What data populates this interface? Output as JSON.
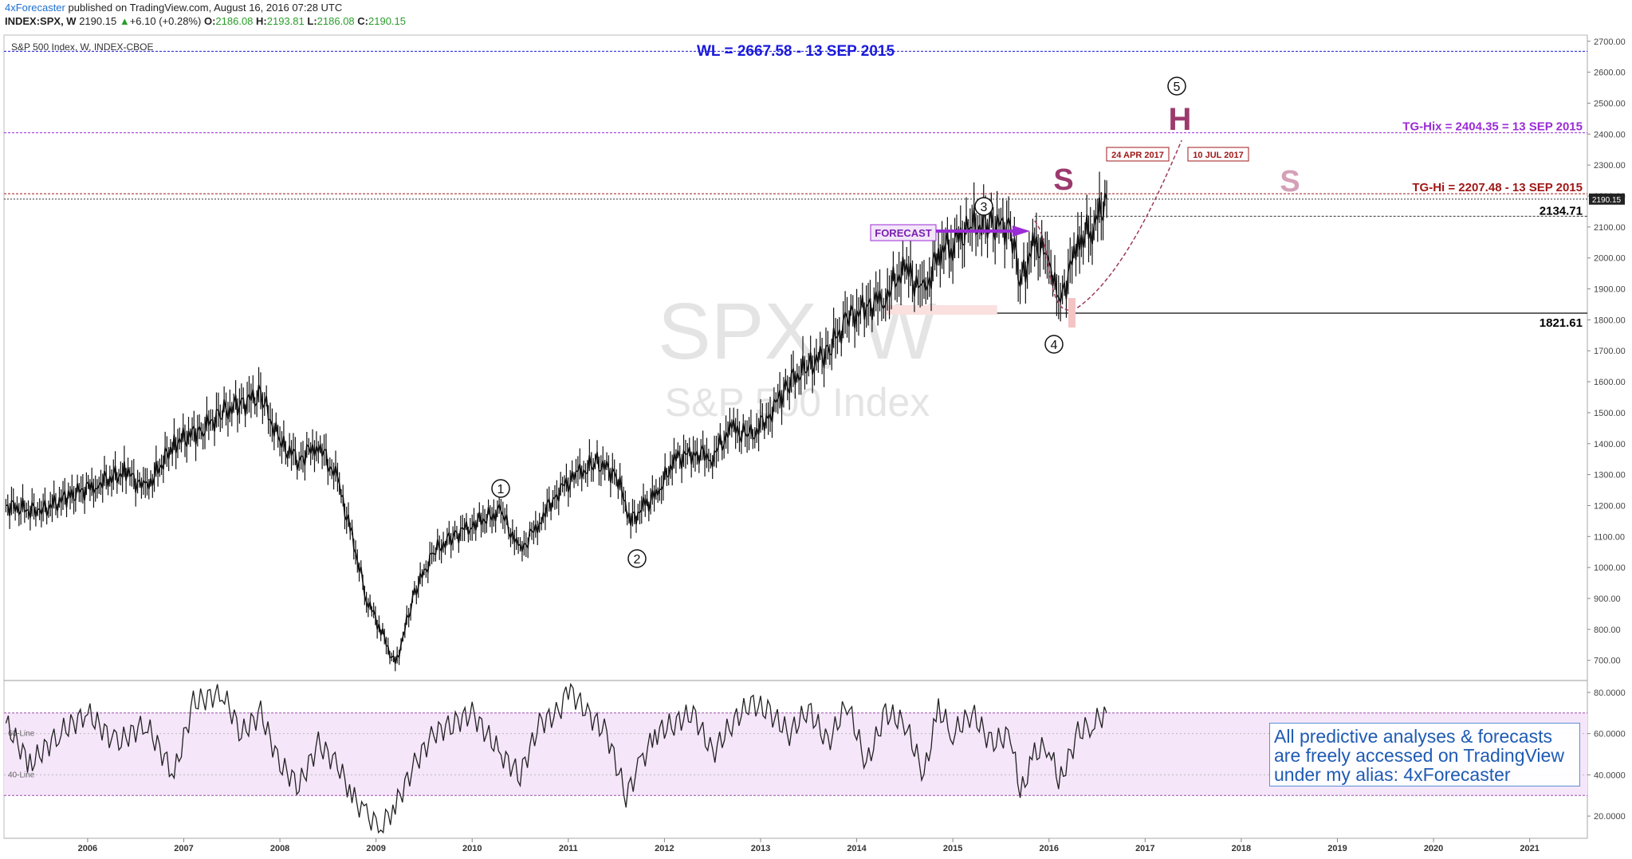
{
  "header": {
    "author": "4xForecaster",
    "published": "published on TradingView.com, August 16, 2016 07:28 UTC",
    "symbol": "INDEX:SPX, W",
    "price": "2190.15",
    "change": "+6.10 (+0.28%)",
    "open_label": "O:",
    "open": "2186.08",
    "high_label": "H:",
    "high": "2193.81",
    "low_label": "L:",
    "low": "2186.08",
    "close_label": "C:",
    "close": "2190.15"
  },
  "pane_title": "S&P 500 Index, W, INDEX-CBOE",
  "watermark": {
    "symbol": "SPX, W",
    "name": "S&P 500 Index"
  },
  "annotations": {
    "wl": "WL = 2667.58 - 13 SEP 2015",
    "tg_hix": "TG-Hix = 2404.35 = 13 SEP 2015",
    "tg_hi": "TG-Hi = 2207.48 - 13 SEP 2015",
    "level_2134": "2134.71",
    "level_1821": "1821.61",
    "forecast": "FORECAST",
    "date1": "24 APR 2017",
    "date2": "10 JUL 2017",
    "s_left": "S",
    "h": "H",
    "s_right": "S",
    "waves": [
      "1",
      "2",
      "3",
      "4",
      "5"
    ],
    "line_60": "60-Line",
    "line_40": "40-Line",
    "price_tag": "2190.15",
    "info": [
      "All predictive analyses & forecasts",
      "are freely accessed on TradingView",
      "under my alias: 4xForecaster"
    ]
  },
  "colors": {
    "wl": "#1a1adb",
    "tg_hix": "#9b2bd6",
    "tg_hi": "#a01818",
    "candles": "#111111",
    "oscillator_band": "#f5e6fa",
    "forecast_arrow": "#9b2bd6",
    "dashed_path": "#9c3a5a",
    "h_color": "#9c3a6e",
    "s_right_color": "#d4a0b8",
    "wave_circle": "#111111"
  },
  "chart_data": {
    "type": "line",
    "title": "S&P 500 Index, W, INDEX-CBOE",
    "y_axis": {
      "ticks": [
        700,
        800,
        900,
        1000,
        1100,
        1200,
        1300,
        1400,
        1500,
        1600,
        1700,
        1800,
        1900,
        2000,
        2100,
        2200,
        2300,
        2400,
        2500,
        2600,
        2700
      ],
      "ylim": [
        640,
        2720
      ],
      "labels": [
        "700.00",
        "800.00",
        "900.00",
        "1000.00",
        "1100.00",
        "1200.00",
        "1300.00",
        "1400.00",
        "1500.00",
        "1600.00",
        "1700.00",
        "1800.00",
        "1900.00",
        "2000.00",
        "2100.00",
        "2200.00",
        "2300.00",
        "2400.00",
        "2500.00",
        "2600.00",
        "2700.00"
      ]
    },
    "x_axis": {
      "ticks": [
        2006,
        2007,
        2008,
        2009,
        2010,
        2011,
        2012,
        2013,
        2014,
        2015,
        2016,
        2017,
        2018,
        2019,
        2020,
        2021
      ],
      "xlim": [
        2005.13,
        2021.6
      ]
    },
    "series": [
      {
        "x": [
          2005.15,
          2005.5,
          2005.8,
          2006.1,
          2006.4,
          2006.6,
          2006.9,
          2007.2,
          2007.4,
          2007.6,
          2007.8,
          2008.0,
          2008.2,
          2008.4,
          2008.6,
          2008.75,
          2008.9,
          2009.05,
          2009.2,
          2009.4,
          2009.6,
          2009.8,
          2010.0,
          2010.3,
          2010.5,
          2010.7,
          2010.9,
          2011.1,
          2011.3,
          2011.5,
          2011.65,
          2011.8,
          2011.95,
          2012.1,
          2012.3,
          2012.5,
          2012.7,
          2012.9,
          2013.1,
          2013.3,
          2013.5,
          2013.7,
          2013.9,
          2014.1,
          2014.3,
          2014.5,
          2014.7,
          2014.85,
          2015.0,
          2015.2,
          2015.4,
          2015.6,
          2015.7,
          2015.85,
          2016.0,
          2016.1,
          2016.3,
          2016.45,
          2016.6
        ],
        "y": [
          1200,
          1180,
          1230,
          1270,
          1310,
          1250,
          1400,
          1450,
          1500,
          1530,
          1560,
          1400,
          1350,
          1400,
          1280,
          1100,
          900,
          800,
          680,
          920,
          1050,
          1100,
          1140,
          1180,
          1050,
          1150,
          1250,
          1300,
          1340,
          1300,
          1150,
          1200,
          1250,
          1350,
          1370,
          1360,
          1450,
          1420,
          1500,
          1600,
          1650,
          1700,
          1800,
          1840,
          1880,
          1970,
          1880,
          2020,
          2050,
          2100,
          2110,
          2100,
          1920,
          2050,
          2000,
          1840,
          2050,
          2100,
          2190
        ]
      }
    ],
    "oscillator": {
      "ylim": [
        10,
        85
      ],
      "ticks": [
        20,
        40,
        60,
        80
      ],
      "labels": [
        "20.0000",
        "40.0000",
        "60.0000",
        "80.0000"
      ],
      "band": [
        30,
        70
      ],
      "lines": [
        40,
        60
      ],
      "x": [
        2005.15,
        2005.4,
        2005.7,
        2006.0,
        2006.3,
        2006.6,
        2006.9,
        2007.1,
        2007.4,
        2007.6,
        2007.8,
        2008.0,
        2008.2,
        2008.4,
        2008.6,
        2008.75,
        2008.9,
        2009.05,
        2009.2,
        2009.4,
        2009.6,
        2009.8,
        2010.0,
        2010.3,
        2010.5,
        2010.7,
        2010.9,
        2011.0,
        2011.2,
        2011.4,
        2011.6,
        2011.75,
        2011.9,
        2012.1,
        2012.3,
        2012.5,
        2012.7,
        2012.9,
        2013.1,
        2013.3,
        2013.5,
        2013.7,
        2013.9,
        2014.1,
        2014.3,
        2014.5,
        2014.7,
        2014.85,
        2015.0,
        2015.2,
        2015.4,
        2015.6,
        2015.7,
        2015.85,
        2016.0,
        2016.1,
        2016.3,
        2016.45,
        2016.6
      ],
      "y": [
        65,
        45,
        60,
        70,
        55,
        65,
        40,
        75,
        80,
        60,
        70,
        45,
        35,
        55,
        45,
        30,
        20,
        15,
        25,
        45,
        60,
        65,
        70,
        50,
        40,
        65,
        70,
        82,
        70,
        60,
        30,
        45,
        60,
        65,
        70,
        50,
        65,
        75,
        70,
        60,
        72,
        55,
        75,
        45,
        70,
        65,
        40,
        72,
        60,
        70,
        55,
        60,
        30,
        50,
        55,
        35,
        60,
        65,
        70
      ]
    }
  }
}
